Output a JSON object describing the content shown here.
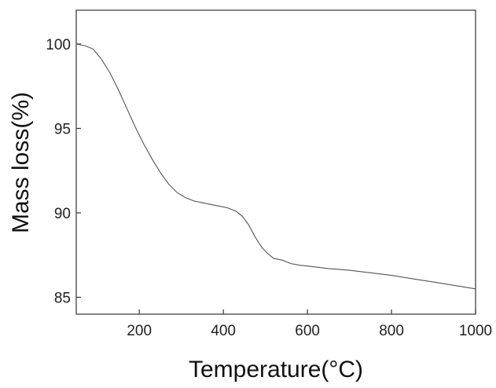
{
  "chart_data": {
    "type": "line",
    "xlabel": "Temperature(°C)",
    "ylabel": "Mass loss(%)",
    "xlim": [
      50,
      1000
    ],
    "ylim": [
      84,
      102
    ],
    "xticks": [
      200,
      400,
      600,
      800,
      1000
    ],
    "yticks": [
      85,
      90,
      95,
      100
    ],
    "xtick_labels": [
      "200",
      "400",
      "600",
      "800",
      "1000"
    ],
    "ytick_labels": [
      "85",
      "90",
      "95",
      "100"
    ],
    "grid": false,
    "line_color": "#555555",
    "series": [
      {
        "x": [
          50,
          70,
          90,
          110,
          130,
          150,
          170,
          190,
          210,
          230,
          250,
          270,
          290,
          310,
          330,
          350,
          370,
          390,
          410,
          430,
          445,
          460,
          475,
          490,
          505,
          520,
          540,
          560,
          580,
          600,
          650,
          700,
          750,
          800,
          850,
          900,
          950,
          1000
        ],
        "y": [
          100.0,
          99.9,
          99.7,
          99.1,
          98.3,
          97.3,
          96.2,
          95.1,
          94.1,
          93.2,
          92.4,
          91.7,
          91.2,
          90.9,
          90.7,
          90.6,
          90.5,
          90.4,
          90.3,
          90.1,
          89.8,
          89.3,
          88.6,
          88.0,
          87.6,
          87.3,
          87.2,
          87.0,
          86.9,
          86.85,
          86.7,
          86.6,
          86.45,
          86.3,
          86.1,
          85.9,
          85.7,
          85.5
        ]
      }
    ]
  }
}
